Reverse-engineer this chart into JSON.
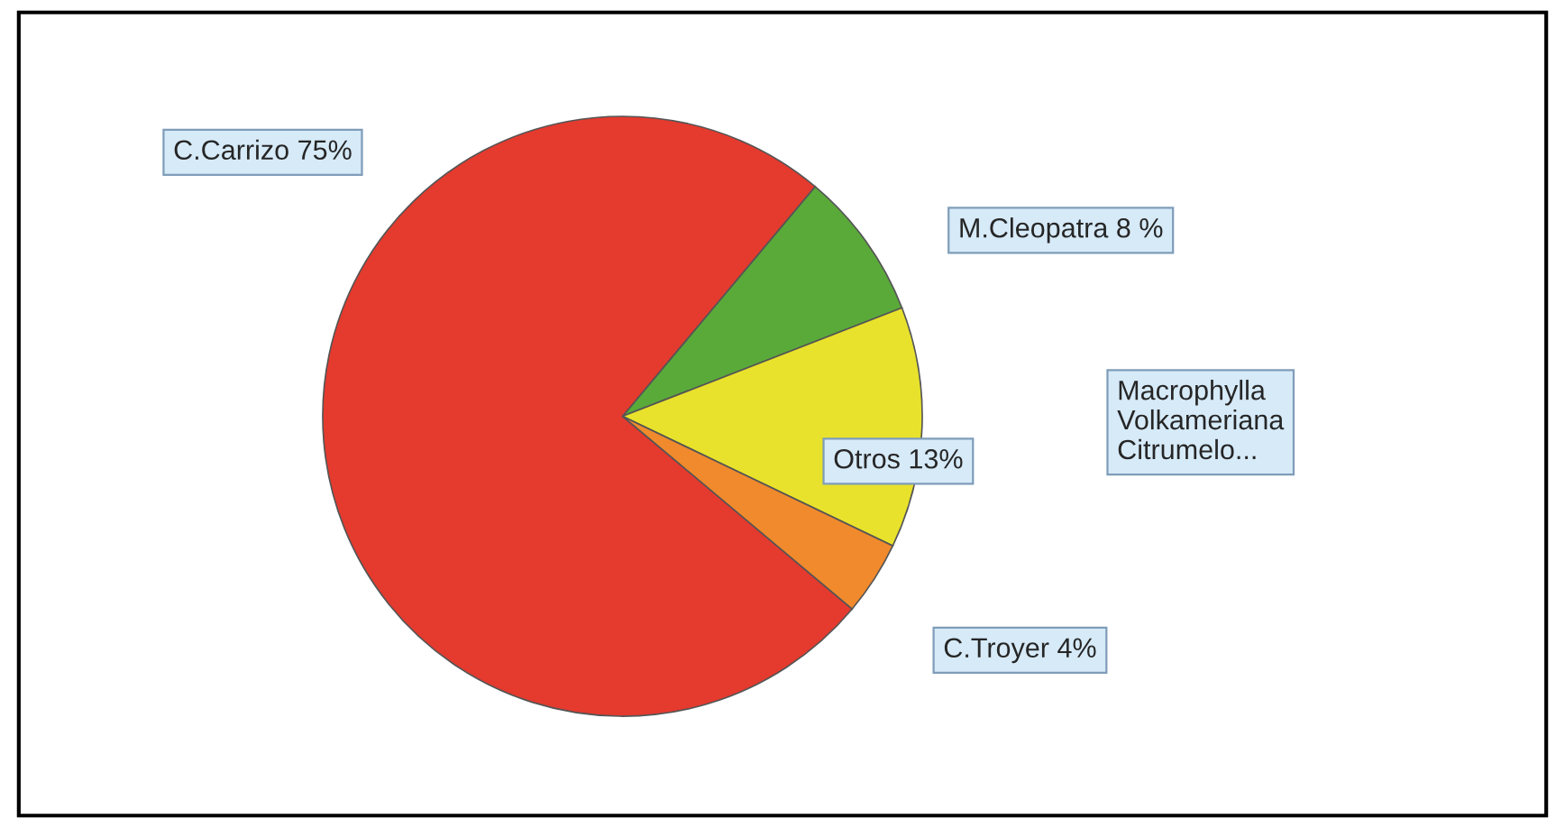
{
  "chart_data": {
    "type": "pie",
    "categories": [
      "M.Cleopatra 8 %",
      "Otros 13%",
      "C.Troyer 4%",
      "C.Carrizo 75%"
    ],
    "values": [
      8,
      13,
      4,
      75
    ],
    "colors": [
      "#5aaa3a",
      "#e8e22c",
      "#f08a2c",
      "#e53a2e"
    ],
    "annotations": [
      "Macrophylla\nVolkameriana\nCitrumelo..."
    ],
    "legend": false
  }
}
